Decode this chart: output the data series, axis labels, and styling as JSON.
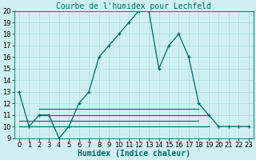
{
  "title": "Courbe de l'humidex pour Lechfeld",
  "xlabel": "Humidex (Indice chaleur)",
  "x": [
    0,
    1,
    2,
    3,
    4,
    5,
    6,
    7,
    8,
    9,
    10,
    11,
    12,
    13,
    14,
    15,
    16,
    17,
    18,
    19,
    20,
    21,
    22,
    23
  ],
  "y_main": [
    13,
    10,
    11,
    11,
    9,
    10,
    12,
    13,
    16,
    17,
    18,
    19,
    20,
    20,
    15,
    17,
    18,
    16,
    12,
    11,
    10,
    10,
    10,
    10
  ],
  "y_line1_start": 0,
  "y_line1_end": 19,
  "y_line1_val": 10,
  "y_line2_start": 0,
  "y_line2_end": 18,
  "y_line2_val": 10.5,
  "y_line3_start": 2,
  "y_line3_end": 19,
  "y_line3_val": 11,
  "y_line4_start": 2,
  "y_line4_end": 18,
  "y_line4_val": 11.5,
  "background_color": "#cff0f0",
  "grid_color": "#aadcdc",
  "line_color": "#006666",
  "marker": "+",
  "xlim": [
    -0.5,
    23.5
  ],
  "ylim": [
    9,
    20
  ],
  "yticks": [
    9,
    10,
    11,
    12,
    13,
    14,
    15,
    16,
    17,
    18,
    19,
    20
  ],
  "xticks": [
    0,
    1,
    2,
    3,
    4,
    5,
    6,
    7,
    8,
    9,
    10,
    11,
    12,
    13,
    14,
    15,
    16,
    17,
    18,
    19,
    20,
    21,
    22,
    23
  ],
  "title_fontsize": 7,
  "label_fontsize": 7,
  "tick_fontsize": 6
}
